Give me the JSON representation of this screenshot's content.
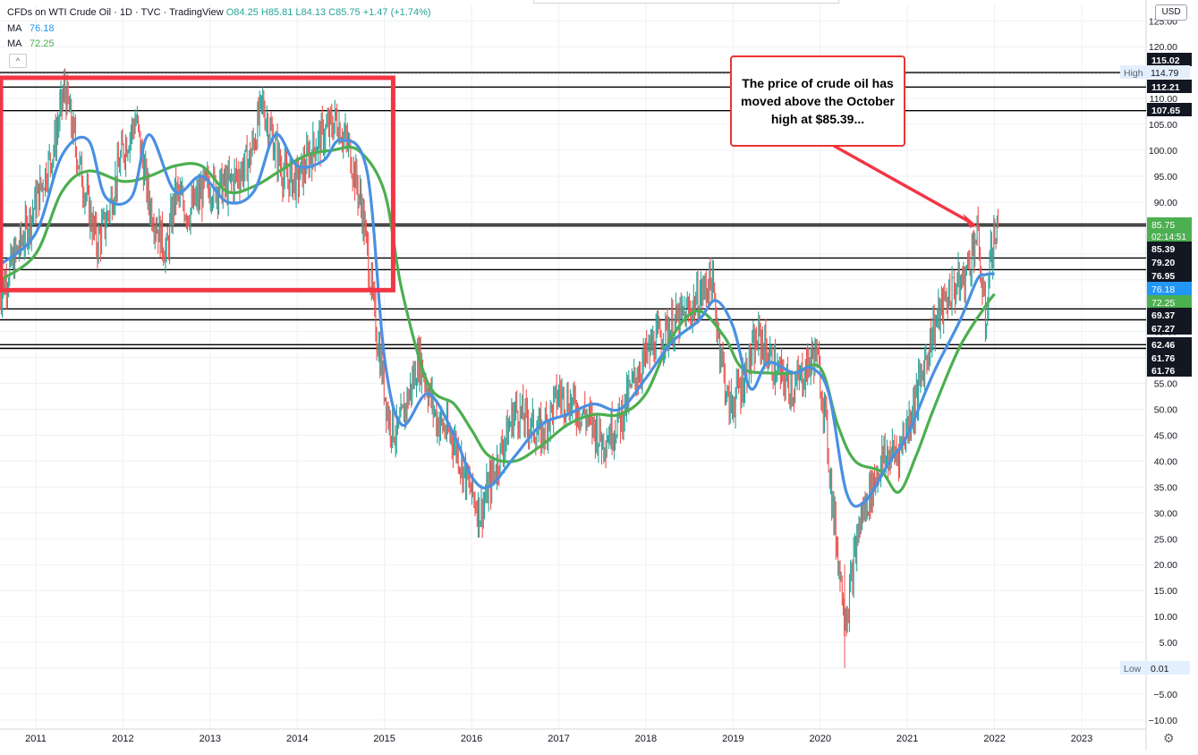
{
  "header": {
    "symbol_line": "CFDs on WTI Crude Oil · 1D · TVC · TradingView",
    "ohlc": {
      "open": "O84.25",
      "high": "H85.81",
      "low": "L84.13",
      "close": "C85.75",
      "change": "+1.47 (+1.74%)"
    },
    "ma_lines": [
      {
        "label": "MA",
        "value": "76.18",
        "color": "#2196f3"
      },
      {
        "label": "MA",
        "value": "72.25",
        "color": "#4caf50"
      }
    ],
    "collapse_icon": "chevron-up-icon",
    "collapse_glyph": "^"
  },
  "currency_button": "USD",
  "annotation_text": "The price of crude oil has moved above the October high at $85.39...",
  "settings_icon": "gear-icon",
  "colors": {
    "up": "#26a69a",
    "down": "#ef5350",
    "ma_fast": "#4a90e2",
    "ma_slow": "#4caf50",
    "box": "#f23645",
    "arrow": "#f23645",
    "grid": "#eef0f4",
    "last_price": "#4caf50"
  },
  "chart_data": {
    "type": "line",
    "x_axis": {
      "ticks": [
        "2011",
        "2012",
        "2013",
        "2014",
        "2015",
        "2016",
        "2017",
        "2018",
        "2019",
        "2020",
        "2021",
        "2022",
        "2023"
      ]
    },
    "y_axis": {
      "range": [
        -10,
        125
      ],
      "ticks": [
        -10,
        -5,
        0.01,
        5,
        10,
        15,
        20,
        25,
        30,
        35,
        40,
        45,
        50,
        55,
        60,
        65,
        70,
        75,
        80,
        85,
        90,
        95,
        100,
        105,
        110,
        115,
        120,
        125
      ],
      "tick_labels": [
        "−10.00",
        "−5.00",
        "0.01",
        "5.00",
        "10.00",
        "15.00",
        "20.00",
        "25.00",
        "30.00",
        "35.00",
        "40.00",
        "45.00",
        "50.00",
        "55.00",
        "60.00",
        "65.00",
        "70.00",
        "75.00",
        "80.00",
        "85.00",
        "90.00",
        "95.00",
        "100.00",
        "105.00",
        "110.00",
        "115.00",
        "120.00",
        "125.00"
      ]
    },
    "price_series": {
      "name": "CFDs on WTI Crude Oil",
      "x": [
        2010.58,
        2010.9,
        2011.2,
        2011.33,
        2011.5,
        2011.7,
        2011.8,
        2012.0,
        2012.15,
        2012.3,
        2012.5,
        2012.6,
        2012.75,
        2012.95,
        2013.2,
        2013.45,
        2013.6,
        2013.7,
        2013.85,
        2014.0,
        2014.2,
        2014.45,
        2014.6,
        2014.75,
        2014.9,
        2015.05,
        2015.15,
        2015.4,
        2015.6,
        2015.8,
        2015.95,
        2016.1,
        2016.3,
        2016.5,
        2016.8,
        2017.0,
        2017.3,
        2017.5,
        2017.7,
        2017.9,
        2018.1,
        2018.3,
        2018.5,
        2018.75,
        2018.95,
        2019.1,
        2019.3,
        2019.5,
        2019.7,
        2019.95,
        2020.05,
        2020.15,
        2020.25,
        2020.3,
        2020.45,
        2020.7,
        2020.9,
        2021.1,
        2021.3,
        2021.5,
        2021.65,
        2021.8,
        2021.9,
        2021.95,
        2022.05
      ],
      "y": [
        72,
        85,
        100,
        112,
        97,
        82,
        86,
        100,
        106,
        90,
        80,
        92,
        88,
        93,
        93,
        98,
        109,
        103,
        95,
        94,
        101,
        106,
        100,
        88,
        66,
        48,
        45,
        60,
        48,
        44,
        36,
        30,
        40,
        50,
        45,
        53,
        49,
        44,
        48,
        57,
        63,
        66,
        69,
        75,
        50,
        55,
        64,
        57,
        54,
        61,
        50,
        30,
        15,
        10,
        28,
        40,
        42,
        52,
        66,
        73,
        75,
        84,
        66,
        80,
        85.75
      ]
    },
    "series": [
      {
        "name": "MA",
        "values_x": [
          2010.6,
          2011.0,
          2011.3,
          2011.6,
          2011.8,
          2012.1,
          2012.3,
          2012.6,
          2012.9,
          2013.2,
          2013.5,
          2013.75,
          2014.0,
          2014.3,
          2014.5,
          2014.8,
          2015.0,
          2015.2,
          2015.5,
          2015.8,
          2016.0,
          2016.2,
          2016.5,
          2016.8,
          2017.1,
          2017.4,
          2017.7,
          2018.0,
          2018.3,
          2018.6,
          2018.8,
          2019.0,
          2019.2,
          2019.4,
          2019.7,
          2019.9,
          2020.1,
          2020.3,
          2020.5,
          2020.8,
          2021.0,
          2021.3,
          2021.6,
          2021.8,
          2021.9,
          2022.0
        ],
        "values": [
          78,
          84,
          99,
          102,
          91,
          91,
          103,
          92,
          95,
          90,
          92,
          103,
          97,
          98,
          102,
          96,
          60,
          47,
          53,
          45,
          37,
          35,
          41,
          47,
          49,
          51,
          50,
          56,
          63,
          67,
          71,
          66,
          54,
          59,
          57,
          58,
          53,
          34,
          32,
          40,
          45,
          57,
          67,
          75,
          76,
          76.18
        ]
      },
      {
        "name": "MA",
        "values_x": [
          2010.6,
          2011.0,
          2011.3,
          2011.6,
          2012.0,
          2012.3,
          2012.6,
          2012.9,
          2013.2,
          2013.5,
          2013.8,
          2014.1,
          2014.4,
          2014.7,
          2015.0,
          2015.2,
          2015.5,
          2015.8,
          2016.0,
          2016.2,
          2016.5,
          2016.8,
          2017.1,
          2017.4,
          2017.7,
          2018.0,
          2018.3,
          2018.6,
          2018.9,
          2019.1,
          2019.4,
          2019.7,
          2020.0,
          2020.2,
          2020.4,
          2020.7,
          2020.9,
          2021.1,
          2021.3,
          2021.6,
          2021.9,
          2022.0
        ],
        "values": [
          75,
          80,
          92,
          96,
          94,
          95,
          97,
          97,
          92,
          93,
          96,
          99,
          100,
          100,
          92,
          73,
          55,
          51,
          46,
          41,
          40,
          43,
          47,
          49,
          49,
          53,
          64,
          69,
          64,
          58,
          57,
          57,
          58,
          47,
          40,
          38,
          34,
          41,
          50,
          62,
          70,
          72.25
        ]
      }
    ],
    "horizontal_levels": [
      115.02,
      114.79,
      112.21,
      107.65,
      85.75,
      85.39,
      79.2,
      76.95,
      76.18,
      72.25,
      69.37,
      67.27,
      62.46,
      61.76,
      61.76,
      0.01
    ],
    "axis_labels": [
      {
        "text": "115.02",
        "style": "black"
      },
      {
        "text": "114.79",
        "style": "high",
        "prefix": "High"
      },
      {
        "text": "112.21",
        "style": "black"
      },
      {
        "text": "107.65",
        "style": "black"
      },
      {
        "text": "85.75",
        "style": "green",
        "countdown": "02:14:51"
      },
      {
        "text": "85.39",
        "style": "black"
      },
      {
        "text": "79.20",
        "style": "black"
      },
      {
        "text": "76.95",
        "style": "black"
      },
      {
        "text": "76.18",
        "style": "blue"
      },
      {
        "text": "72.25",
        "style": "green"
      },
      {
        "text": "69.37",
        "style": "black"
      },
      {
        "text": "67.27",
        "style": "black"
      },
      {
        "text": "62.46",
        "style": "black"
      },
      {
        "text": "61.76",
        "style": "black"
      },
      {
        "text": "61.76",
        "style": "black"
      },
      {
        "text": "0.01",
        "style": "low",
        "prefix": "Low"
      }
    ],
    "highlight_box": {
      "x_range": [
        2010.6,
        2015.1
      ],
      "y_range": [
        73,
        114
      ]
    },
    "arrow": {
      "to_x": 2021.8,
      "to_y": 85.39
    },
    "grid": true,
    "legend_position": "top-left"
  }
}
